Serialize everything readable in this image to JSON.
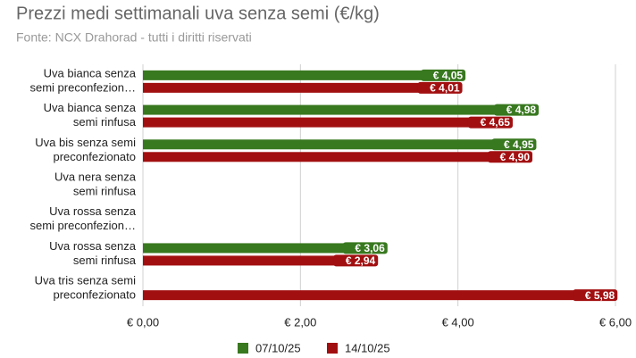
{
  "chart_data": {
    "type": "hbar",
    "title": "Prezzi medi settimanali uva senza semi (€/kg)",
    "subtitle": "Fonte: NCX Drahorad - tutti i diritti riservati",
    "categories": [
      [
        "Uva bianca senza",
        "semi preconfezion…"
      ],
      [
        "Uva bianca senza",
        "semi rinfusa"
      ],
      [
        "Uva bis senza semi",
        "preconfezionato"
      ],
      [
        "Uva nera senza",
        "semi rinfusa"
      ],
      [
        "Uva rossa senza",
        "semi preconfezion…"
      ],
      [
        "Uva rossa senza",
        "semi rinfusa"
      ],
      [
        "Uva tris senza semi",
        "preconfezionato"
      ]
    ],
    "series": [
      {
        "name": "07/10/25",
        "color": "#38781f",
        "values": [
          4.05,
          4.98,
          4.95,
          null,
          null,
          3.06,
          null
        ],
        "value_labels": [
          "€ 4,05",
          "€ 4,98",
          "€ 4,95",
          null,
          null,
          "€ 3,06",
          null
        ]
      },
      {
        "name": "14/10/25",
        "color": "#a20f10",
        "values": [
          4.01,
          4.65,
          4.9,
          null,
          null,
          2.94,
          5.98
        ],
        "value_labels": [
          "€ 4,01",
          "€ 4,65",
          "€ 4,90",
          null,
          null,
          "€ 2,94",
          "€ 5,98"
        ]
      }
    ],
    "xlim": [
      0,
      6
    ],
    "xticks": [
      {
        "value": 0,
        "label": "€ 0,00"
      },
      {
        "value": 2,
        "label": "€ 2,00"
      },
      {
        "value": 4,
        "label": "€ 4,00"
      },
      {
        "value": 6,
        "label": "€ 6,00"
      }
    ],
    "grid": true,
    "legend": "bottom"
  }
}
